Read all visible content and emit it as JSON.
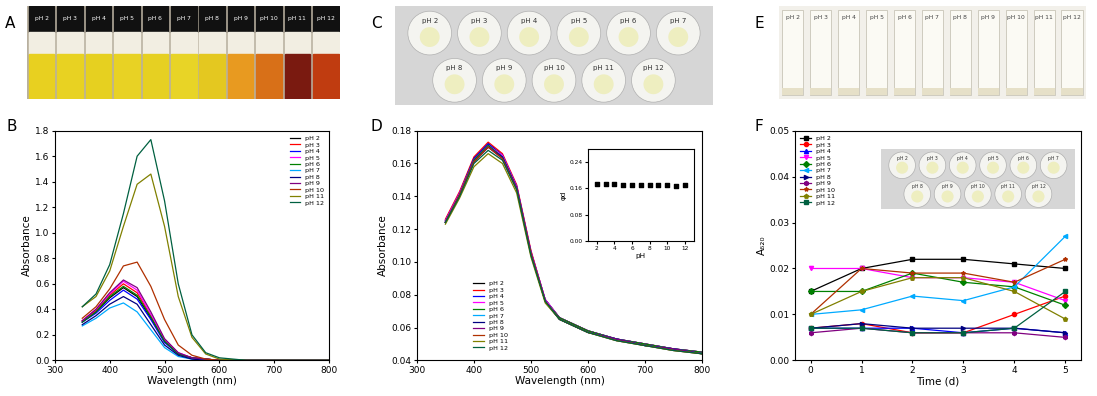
{
  "images": [
    {
      "title": "A",
      "type": "vials",
      "labels": [
        "pH 2",
        "pH 3",
        "pH 4",
        "pH 5",
        "pH 6",
        "pH 7",
        "pH 8",
        "pH 9",
        "pH 10",
        "pH 11",
        "pH 12"
      ],
      "colors": [
        "#e8d020",
        "#e8d222",
        "#e6d020",
        "#e8d224",
        "#e6d022",
        "#e8d426",
        "#e4c820",
        "#e89a20",
        "#d87018",
        "#7a1a10",
        "#c03c10"
      ]
    },
    {
      "title": "C",
      "type": "wells",
      "labels": [
        "pH 2",
        "pH 3",
        "pH 4",
        "pH 5",
        "pH 6",
        "pH 7",
        "pH 8",
        "pH 9",
        "pH 10",
        "pH 11",
        "pH 12"
      ]
    },
    {
      "title": "E",
      "type": "tubes",
      "labels": [
        "pH 2",
        "pH 3",
        "pH 4",
        "pH 5",
        "pH 6",
        "pH 7",
        "pH 8",
        "pH 9",
        "pH 10",
        "pH 11",
        "pH 12"
      ]
    }
  ],
  "chart_data": [
    {
      "title": "B",
      "type": "line",
      "xlabel": "Wavelength (nm)",
      "ylabel": "Absorbance",
      "x": [
        350,
        375,
        400,
        425,
        450,
        475,
        500,
        525,
        550,
        575,
        600,
        650,
        700,
        750,
        800
      ],
      "xlim": [
        300,
        800
      ],
      "xticks": [
        300,
        400,
        500,
        600,
        700,
        800
      ],
      "ylim": [
        0,
        1.8
      ],
      "yticks": [
        {
          "value": 0,
          "label": "0.0"
        },
        0.2,
        0.4,
        0.6,
        0.8,
        {
          "value": 1,
          "label": "1.0"
        },
        1.2,
        1.4,
        1.6,
        1.8
      ],
      "legend": "upper right",
      "series": [
        {
          "name": "pH 2",
          "color": "#000000",
          "values": [
            0.3,
            0.38,
            0.49,
            0.57,
            0.5,
            0.33,
            0.15,
            0.05,
            0.02,
            0.01,
            0.0,
            0.0,
            0.0,
            0.0,
            0.0
          ]
        },
        {
          "name": "pH 3",
          "color": "#ff0000",
          "values": [
            0.31,
            0.39,
            0.51,
            0.6,
            0.53,
            0.35,
            0.16,
            0.05,
            0.02,
            0.01,
            0.0,
            0.0,
            0.0,
            0.0,
            0.0
          ]
        },
        {
          "name": "pH 4",
          "color": "#0000ff",
          "values": [
            0.3,
            0.37,
            0.47,
            0.55,
            0.48,
            0.32,
            0.14,
            0.05,
            0.02,
            0.01,
            0.0,
            0.0,
            0.0,
            0.0,
            0.0
          ]
        },
        {
          "name": "pH 5",
          "color": "#ff00ff",
          "values": [
            0.31,
            0.4,
            0.52,
            0.62,
            0.55,
            0.36,
            0.16,
            0.06,
            0.02,
            0.01,
            0.0,
            0.0,
            0.0,
            0.0,
            0.0
          ]
        },
        {
          "name": "pH 6",
          "color": "#008000",
          "values": [
            0.3,
            0.38,
            0.5,
            0.58,
            0.51,
            0.34,
            0.15,
            0.05,
            0.02,
            0.01,
            0.0,
            0.0,
            0.0,
            0.0,
            0.0
          ]
        },
        {
          "name": "pH 7",
          "color": "#00aaff",
          "values": [
            0.27,
            0.33,
            0.41,
            0.45,
            0.38,
            0.24,
            0.1,
            0.03,
            0.01,
            0.0,
            0.0,
            0.0,
            0.0,
            0.0,
            0.0
          ]
        },
        {
          "name": "pH 8",
          "color": "#000080",
          "values": [
            0.28,
            0.35,
            0.44,
            0.5,
            0.44,
            0.28,
            0.12,
            0.04,
            0.01,
            0.0,
            0.0,
            0.0,
            0.0,
            0.0,
            0.0
          ]
        },
        {
          "name": "pH 9",
          "color": "#800080",
          "values": [
            0.31,
            0.4,
            0.53,
            0.63,
            0.57,
            0.38,
            0.17,
            0.06,
            0.02,
            0.01,
            0.0,
            0.0,
            0.0,
            0.0,
            0.0
          ]
        },
        {
          "name": "pH 10",
          "color": "#b03000",
          "values": [
            0.33,
            0.42,
            0.56,
            0.74,
            0.77,
            0.58,
            0.32,
            0.12,
            0.04,
            0.01,
            0.0,
            0.0,
            0.0,
            0.0,
            0.0
          ]
        },
        {
          "name": "pH 11",
          "color": "#808000",
          "values": [
            0.42,
            0.5,
            0.7,
            1.05,
            1.38,
            1.46,
            1.05,
            0.5,
            0.18,
            0.05,
            0.01,
            0.0,
            0.0,
            0.0,
            0.0
          ]
        },
        {
          "name": "pH 12",
          "color": "#006040",
          "values": [
            0.42,
            0.52,
            0.75,
            1.15,
            1.6,
            1.73,
            1.25,
            0.6,
            0.2,
            0.06,
            0.02,
            0.0,
            0.0,
            0.0,
            0.0
          ]
        }
      ]
    },
    {
      "title": "D",
      "type": "line",
      "xlabel": "Wavelength (nm)",
      "ylabel": "Absorbance",
      "x": [
        350,
        375,
        400,
        425,
        450,
        475,
        500,
        525,
        550,
        600,
        650,
        700,
        750,
        800
      ],
      "xlim": [
        300,
        800
      ],
      "xticks": [
        300,
        400,
        500,
        600,
        700,
        800
      ],
      "ylim": [
        0.04,
        0.18
      ],
      "yticks": [
        0.04,
        0.06,
        0.08,
        {
          "value": 0.1,
          "label": "0.10"
        },
        0.12,
        0.14,
        0.16,
        0.18
      ],
      "legend": "lower left",
      "series": [
        {
          "name": "pH 2",
          "color": "#000000",
          "values": [
            0.125,
            0.142,
            0.163,
            0.172,
            0.165,
            0.146,
            0.106,
            0.077,
            0.066,
            0.058,
            0.053,
            0.05,
            0.047,
            0.045
          ]
        },
        {
          "name": "pH 3",
          "color": "#ff0000",
          "values": [
            0.126,
            0.143,
            0.164,
            0.173,
            0.166,
            0.147,
            0.107,
            0.077,
            0.066,
            0.058,
            0.053,
            0.05,
            0.047,
            0.045
          ]
        },
        {
          "name": "pH 4",
          "color": "#0000ff",
          "values": [
            0.125,
            0.142,
            0.163,
            0.172,
            0.165,
            0.146,
            0.106,
            0.077,
            0.066,
            0.058,
            0.053,
            0.05,
            0.047,
            0.045
          ]
        },
        {
          "name": "pH 5",
          "color": "#ff00ff",
          "values": [
            0.125,
            0.142,
            0.162,
            0.171,
            0.165,
            0.146,
            0.106,
            0.077,
            0.066,
            0.058,
            0.053,
            0.05,
            0.047,
            0.045
          ]
        },
        {
          "name": "pH 6",
          "color": "#008000",
          "values": [
            0.124,
            0.141,
            0.162,
            0.171,
            0.164,
            0.145,
            0.105,
            0.076,
            0.066,
            0.058,
            0.053,
            0.05,
            0.047,
            0.045
          ]
        },
        {
          "name": "pH 7",
          "color": "#00aaff",
          "values": [
            0.124,
            0.141,
            0.161,
            0.17,
            0.164,
            0.145,
            0.105,
            0.076,
            0.065,
            0.057,
            0.053,
            0.049,
            0.047,
            0.044
          ]
        },
        {
          "name": "pH 8",
          "color": "#000080",
          "values": [
            0.124,
            0.141,
            0.161,
            0.17,
            0.164,
            0.145,
            0.105,
            0.076,
            0.065,
            0.057,
            0.053,
            0.049,
            0.047,
            0.044
          ]
        },
        {
          "name": "pH 9",
          "color": "#800080",
          "values": [
            0.124,
            0.141,
            0.161,
            0.17,
            0.163,
            0.145,
            0.105,
            0.076,
            0.065,
            0.057,
            0.053,
            0.049,
            0.047,
            0.044
          ]
        },
        {
          "name": "pH 10",
          "color": "#b03000",
          "values": [
            0.124,
            0.141,
            0.161,
            0.17,
            0.163,
            0.144,
            0.105,
            0.076,
            0.065,
            0.057,
            0.052,
            0.049,
            0.046,
            0.044
          ]
        },
        {
          "name": "pH 11",
          "color": "#808000",
          "values": [
            0.123,
            0.139,
            0.158,
            0.166,
            0.16,
            0.142,
            0.103,
            0.075,
            0.065,
            0.057,
            0.052,
            0.049,
            0.046,
            0.044
          ]
        },
        {
          "name": "pH 12",
          "color": "#006040",
          "values": [
            0.124,
            0.14,
            0.16,
            0.168,
            0.162,
            0.144,
            0.104,
            0.076,
            0.065,
            0.057,
            0.052,
            0.049,
            0.046,
            0.044
          ]
        }
      ],
      "inset": {
        "type": "scatter",
        "xlabel": "pH",
        "ylabel": "φd",
        "color": "#000000",
        "x": [
          2,
          3,
          4,
          5,
          6,
          7,
          8,
          9,
          10,
          11,
          12
        ],
        "values": [
          0.172,
          0.173,
          0.172,
          0.171,
          0.171,
          0.17,
          0.17,
          0.17,
          0.17,
          0.166,
          0.17
        ],
        "xlim": [
          1,
          13
        ],
        "xticks": [
          2,
          4,
          6,
          8,
          10,
          12
        ],
        "ylim": [
          0,
          0.28
        ],
        "yticks": [
          {
            "value": 0,
            "label": "0.00"
          },
          0.08,
          0.16,
          0.24
        ]
      }
    },
    {
      "title": "F",
      "type": "line",
      "xlabel": "Time (d)",
      "ylabel": "A₆₂₀",
      "x": [
        0,
        1,
        2,
        3,
        4,
        5
      ],
      "xlim": [
        -0.3,
        5.3
      ],
      "xticks": [
        0,
        1,
        2,
        3,
        4,
        5
      ],
      "ylim": [
        0,
        0.05
      ],
      "yticks": [
        {
          "value": 0,
          "label": "0.00"
        },
        0.01,
        0.02,
        0.03,
        0.04,
        0.05
      ],
      "legend": "upper left",
      "series": [
        {
          "name": "pH 2",
          "color": "#000000",
          "marker": "square",
          "values": [
            0.015,
            0.02,
            0.022,
            0.022,
            0.021,
            0.02
          ]
        },
        {
          "name": "pH 3",
          "color": "#ff0000",
          "marker": "circle",
          "values": [
            0.007,
            0.008,
            0.006,
            0.006,
            0.01,
            0.014
          ]
        },
        {
          "name": "pH 4",
          "color": "#0000ff",
          "marker": "triangle",
          "values": [
            0.007,
            0.007,
            0.007,
            0.006,
            0.007,
            0.006
          ]
        },
        {
          "name": "pH 5",
          "color": "#ff00ff",
          "marker": "down_triangle",
          "values": [
            0.02,
            0.02,
            0.018,
            0.018,
            0.017,
            0.013
          ]
        },
        {
          "name": "pH 6",
          "color": "#008000",
          "marker": "diamond",
          "values": [
            0.015,
            0.015,
            0.019,
            0.017,
            0.016,
            0.012
          ]
        },
        {
          "name": "pH 7",
          "color": "#00aaff",
          "marker": "left_triangle",
          "values": [
            0.01,
            0.011,
            0.014,
            0.013,
            0.016,
            0.027
          ]
        },
        {
          "name": "pH 8",
          "color": "#000080",
          "marker": "right_triangle",
          "values": [
            0.007,
            0.008,
            0.007,
            0.007,
            0.007,
            0.006
          ]
        },
        {
          "name": "pH 9",
          "color": "#800080",
          "marker": "hexagon",
          "values": [
            0.006,
            0.007,
            0.006,
            0.006,
            0.006,
            0.005
          ]
        },
        {
          "name": "pH 10",
          "color": "#b03000",
          "marker": "star",
          "values": [
            0.01,
            0.02,
            0.019,
            0.019,
            0.017,
            0.022
          ]
        },
        {
          "name": "pH 11",
          "color": "#808000",
          "marker": "pentagon",
          "values": [
            0.01,
            0.015,
            0.018,
            0.018,
            0.015,
            0.009
          ]
        },
        {
          "name": "pH 12",
          "color": "#006040",
          "marker": "square",
          "values": [
            0.007,
            0.007,
            0.006,
            0.006,
            0.007,
            0.015
          ]
        }
      ],
      "inset": {
        "type": "wells",
        "labels": [
          "pH 2",
          "pH 3",
          "pH 4",
          "pH 5",
          "pH 6",
          "pH 7",
          "pH 8",
          "pH 9",
          "pH 10",
          "pH 11",
          "pH 12"
        ]
      }
    }
  ]
}
